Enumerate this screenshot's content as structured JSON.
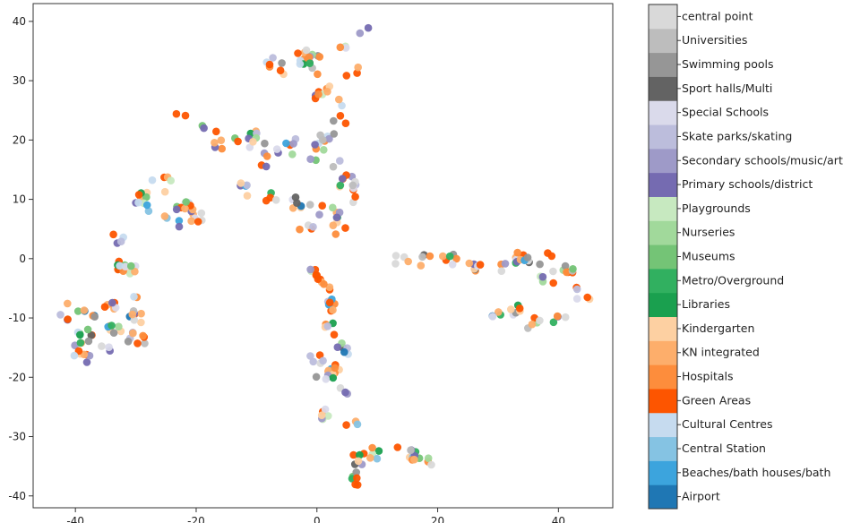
{
  "chart_data": {
    "type": "scatter",
    "title": "",
    "xlabel": "",
    "ylabel": "",
    "xlim": [
      -47,
      49
    ],
    "ylim": [
      -42,
      43
    ],
    "x_ticks": [
      -40,
      -20,
      0,
      20,
      40
    ],
    "y_ticks": [
      -40,
      -30,
      -20,
      -10,
      0,
      10,
      20,
      30,
      40
    ],
    "grid": false,
    "colorbar": {
      "position": "right",
      "categories": [
        {
          "name": "Airport",
          "color": "#1f77b4"
        },
        {
          "name": "Beaches/bath houses/bath",
          "color": "#3ca4dd"
        },
        {
          "name": "Central Station",
          "color": "#85c3e3"
        },
        {
          "name": "Cultural Centres",
          "color": "#c6dbef"
        },
        {
          "name": "Green Areas",
          "color": "#fd5500"
        },
        {
          "name": "Hospitals",
          "color": "#fd8d3c"
        },
        {
          "name": "KN integrated",
          "color": "#fdae6b"
        },
        {
          "name": "Kindergarten",
          "color": "#fdd0a2"
        },
        {
          "name": "Libraries",
          "color": "#1aa04f"
        },
        {
          "name": "Metro/Overground",
          "color": "#31b060"
        },
        {
          "name": "Museums",
          "color": "#74c476"
        },
        {
          "name": "Nurseries",
          "color": "#a1d99b"
        },
        {
          "name": "Playgrounds",
          "color": "#c7e9c0"
        },
        {
          "name": "Primary schools/district",
          "color": "#756bb1"
        },
        {
          "name": "Secondary schools/music/art",
          "color": "#9e9ac8"
        },
        {
          "name": "Skate parks/skating",
          "color": "#bcbddc"
        },
        {
          "name": "Special Schools",
          "color": "#dadaeb"
        },
        {
          "name": "Sport halls/Multi",
          "color": "#636363"
        },
        {
          "name": "Swimming pools",
          "color": "#969696"
        },
        {
          "name": "Universities",
          "color": "#bdbdbd"
        },
        {
          "name": "central point",
          "color": "#d9d9d9"
        }
      ]
    },
    "clusters": [
      {
        "points": [
          [
            -38,
            -9
          ],
          [
            -34,
            -9
          ],
          [
            -30,
            -10
          ],
          [
            -30,
            -14
          ],
          [
            -35,
            -15
          ],
          [
            -39,
            -16
          ],
          [
            -42,
            -9
          ],
          [
            -38,
            -13
          ],
          [
            -33,
            -12
          ]
        ],
        "spread": 1.6,
        "n": 60
      },
      {
        "points": [
          [
            -33,
            3
          ],
          [
            -31,
            -2
          ],
          [
            -30,
            -6
          ],
          [
            -32,
            -1
          ]
        ],
        "spread": 1.2,
        "n": 20
      },
      {
        "points": [
          [
            -28,
            8
          ],
          [
            -26,
            12
          ],
          [
            -24,
            13
          ],
          [
            -22,
            9
          ],
          [
            -20,
            7
          ],
          [
            -24,
            6
          ],
          [
            -29,
            10
          ]
        ],
        "spread": 1.3,
        "n": 35
      },
      {
        "points": [
          [
            -22,
            23
          ],
          [
            -18,
            22
          ],
          [
            -14,
            21
          ],
          [
            -10,
            20
          ],
          [
            -5,
            19
          ],
          [
            0,
            18
          ],
          [
            3,
            15
          ],
          [
            5,
            13
          ],
          [
            -8,
            17
          ],
          [
            2,
            20
          ],
          [
            -16,
            20
          ]
        ],
        "spread": 1.5,
        "n": 55
      },
      {
        "points": [
          [
            -12,
            12
          ],
          [
            -8,
            10
          ],
          [
            -4,
            9
          ],
          [
            0,
            8
          ],
          [
            3,
            8
          ],
          [
            4,
            5
          ],
          [
            5,
            10
          ],
          [
            -2,
            6
          ]
        ],
        "spread": 1.4,
        "n": 35
      },
      {
        "points": [
          [
            -8,
            33
          ],
          [
            -5,
            32
          ],
          [
            -2,
            34
          ],
          [
            0,
            33
          ],
          [
            -1,
            30
          ],
          [
            1,
            28
          ],
          [
            3,
            27
          ],
          [
            5,
            36
          ],
          [
            8,
            38
          ],
          [
            6,
            31
          ],
          [
            4,
            24
          ]
        ],
        "spread": 1.3,
        "n": 45
      },
      {
        "points": [
          [
            0,
            -3
          ],
          [
            1,
            -5
          ],
          [
            3,
            -8
          ],
          [
            2,
            -12
          ],
          [
            4,
            -15
          ],
          [
            3,
            -19
          ],
          [
            5,
            -23
          ],
          [
            6,
            -27
          ],
          [
            2,
            -26
          ],
          [
            1,
            -20
          ],
          [
            0,
            -17
          ]
        ],
        "spread": 1.2,
        "n": 60
      },
      {
        "points": [
          [
            7,
            -34
          ],
          [
            10,
            -33
          ],
          [
            13,
            -32
          ],
          [
            16,
            -33
          ],
          [
            19,
            -34
          ],
          [
            7,
            -37
          ]
        ],
        "spread": 1.2,
        "n": 30
      },
      {
        "points": [
          [
            14,
            0
          ],
          [
            18,
            0
          ],
          [
            22,
            0
          ],
          [
            26,
            -1
          ],
          [
            30,
            -1
          ],
          [
            34,
            0
          ],
          [
            38,
            0
          ],
          [
            42,
            -2
          ],
          [
            44,
            -6
          ],
          [
            40,
            -10
          ],
          [
            36,
            -11
          ],
          [
            33,
            -9
          ],
          [
            30,
            -10
          ],
          [
            38,
            -3
          ]
        ],
        "spread": 1.2,
        "n": 75
      }
    ]
  }
}
